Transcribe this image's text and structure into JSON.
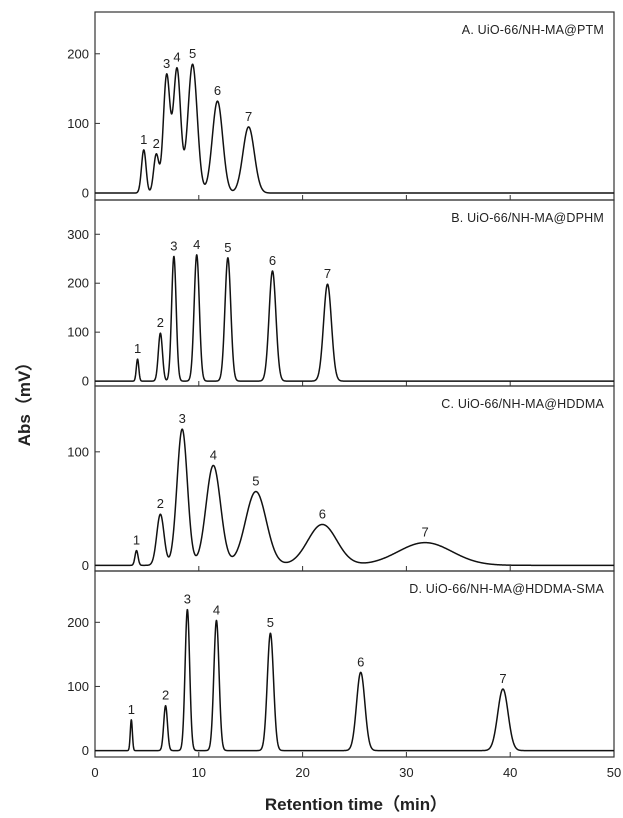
{
  "chart_data": {
    "type": "line",
    "xlabel": "Retention time（min）",
    "ylabel": "Abs（mV）",
    "xlim": [
      0,
      50
    ],
    "xticks": [
      0,
      10,
      20,
      30,
      40,
      50
    ],
    "shared_x_axis": true,
    "panels": [
      {
        "title": "A. UiO-66/NH-MA@PTM",
        "ylim": [
          -10,
          260
        ],
        "yticks": [
          0,
          100,
          200
        ],
        "baseline": 0,
        "peaks": [
          {
            "label": "1",
            "x": 4.7,
            "y": 62,
            "width": 0.22
          },
          {
            "label": "2",
            "x": 5.9,
            "y": 55,
            "width": 0.25
          },
          {
            "label": "3",
            "x": 6.9,
            "y": 168,
            "width": 0.32
          },
          {
            "label": "4",
            "x": 7.9,
            "y": 178,
            "width": 0.35
          },
          {
            "label": "5",
            "x": 9.4,
            "y": 185,
            "width": 0.45
          },
          {
            "label": "6",
            "x": 11.8,
            "y": 132,
            "width": 0.5
          },
          {
            "label": "7",
            "x": 14.8,
            "y": 95,
            "width": 0.55
          }
        ]
      },
      {
        "title": "B. UiO-66/NH-MA@DPHM",
        "ylim": [
          -10,
          370
        ],
        "yticks": [
          0,
          100,
          200,
          300
        ],
        "baseline": 0,
        "peaks": [
          {
            "label": "1",
            "x": 4.1,
            "y": 45,
            "width": 0.12
          },
          {
            "label": "2",
            "x": 6.3,
            "y": 98,
            "width": 0.2
          },
          {
            "label": "3",
            "x": 7.6,
            "y": 255,
            "width": 0.22
          },
          {
            "label": "4",
            "x": 9.8,
            "y": 258,
            "width": 0.25
          },
          {
            "label": "5",
            "x": 12.8,
            "y": 252,
            "width": 0.28
          },
          {
            "label": "6",
            "x": 17.1,
            "y": 225,
            "width": 0.33
          },
          {
            "label": "7",
            "x": 22.4,
            "y": 198,
            "width": 0.38
          }
        ]
      },
      {
        "title": "C. UiO-66/NH-MA@HDDMA",
        "ylim": [
          -5,
          158
        ],
        "yticks": [
          0,
          100
        ],
        "baseline": 0,
        "peaks": [
          {
            "label": "1",
            "x": 4.0,
            "y": 13,
            "width": 0.15
          },
          {
            "label": "2",
            "x": 6.3,
            "y": 45,
            "width": 0.35
          },
          {
            "label": "3",
            "x": 8.4,
            "y": 120,
            "width": 0.5
          },
          {
            "label": "4",
            "x": 11.4,
            "y": 88,
            "width": 0.7
          },
          {
            "label": "5",
            "x": 15.5,
            "y": 65,
            "width": 1.0
          },
          {
            "label": "6",
            "x": 21.9,
            "y": 36,
            "width": 1.4
          },
          {
            "label": "7",
            "x": 31.8,
            "y": 20,
            "width": 2.6
          }
        ]
      },
      {
        "title": "D. UiO-66/NH-MA@HDDMA-SMA",
        "ylim": [
          -10,
          280
        ],
        "yticks": [
          0,
          100,
          200
        ],
        "baseline": 0,
        "peaks": [
          {
            "label": "1",
            "x": 3.5,
            "y": 48,
            "width": 0.1
          },
          {
            "label": "2",
            "x": 6.8,
            "y": 70,
            "width": 0.18
          },
          {
            "label": "3",
            "x": 8.9,
            "y": 220,
            "width": 0.22
          },
          {
            "label": "4",
            "x": 11.7,
            "y": 203,
            "width": 0.25
          },
          {
            "label": "5",
            "x": 16.9,
            "y": 183,
            "width": 0.3
          },
          {
            "label": "6",
            "x": 25.6,
            "y": 122,
            "width": 0.4
          },
          {
            "label": "7",
            "x": 39.3,
            "y": 96,
            "width": 0.5
          }
        ]
      }
    ]
  }
}
